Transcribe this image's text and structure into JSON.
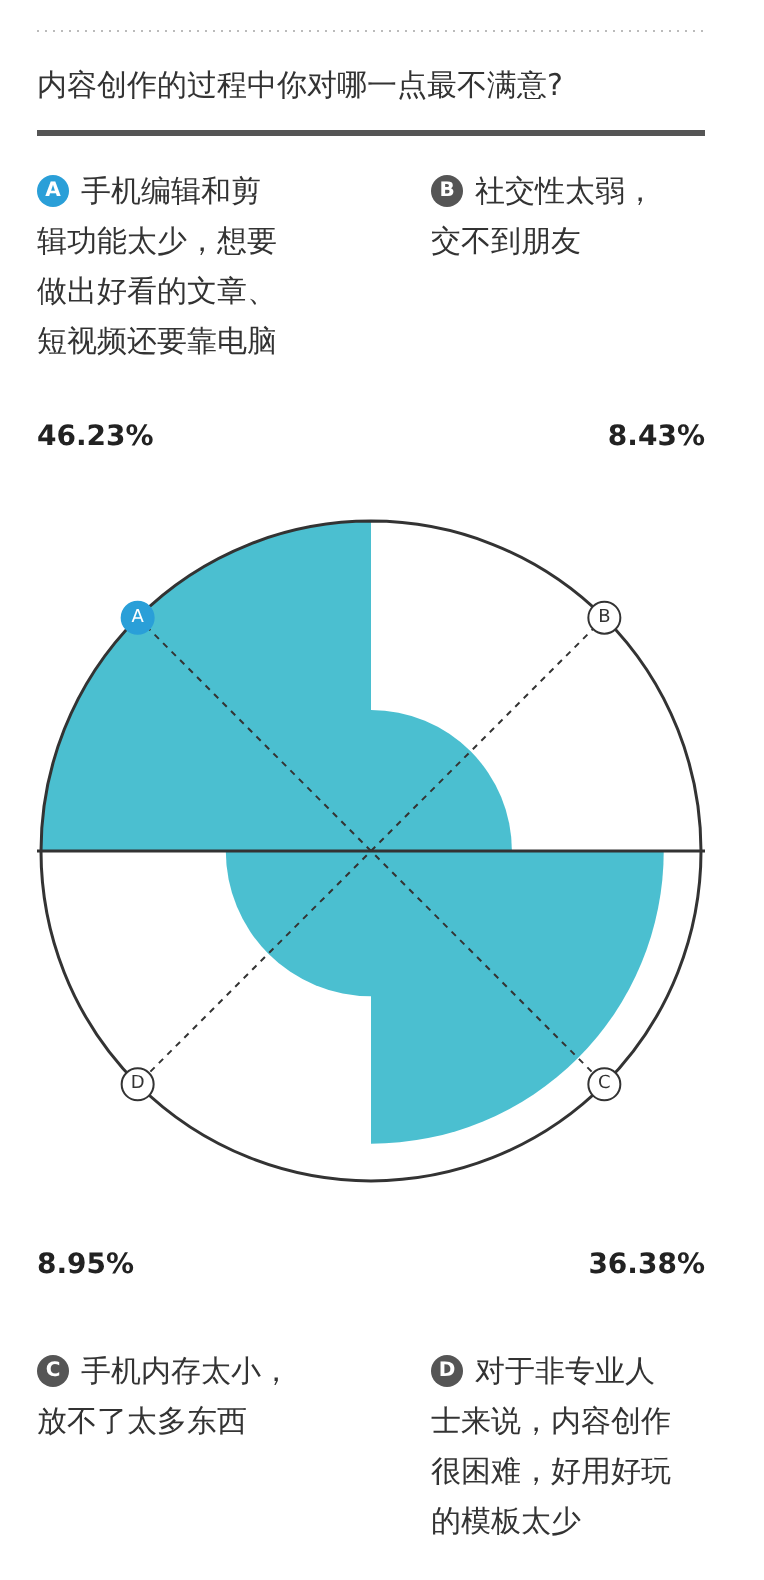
{
  "chart_data": {
    "type": "other",
    "title": "内容创作的过程中你对哪一点最不满意?",
    "categories": [
      "手机编辑和剪辑功能太少，想要做出好看的文章、短视频还要靠电脑",
      "社交性太弱，交不到朋友",
      "手机内存太小，放不了太多东西",
      "对于非专业人士来说，内容创作很困难，好用好玩的模板太少"
    ],
    "values": [
      46.23,
      8.43,
      8.95,
      36.38
    ],
    "colors": [
      "#4bbfd0",
      "#4bbfd0",
      "#4bbfd0",
      "#4bbfd0"
    ],
    "annotations": [
      "A",
      "B",
      "C",
      "D"
    ],
    "value_labels": [
      "46.23%",
      "8.43%",
      "8.95%",
      "36.38%"
    ]
  }
}
